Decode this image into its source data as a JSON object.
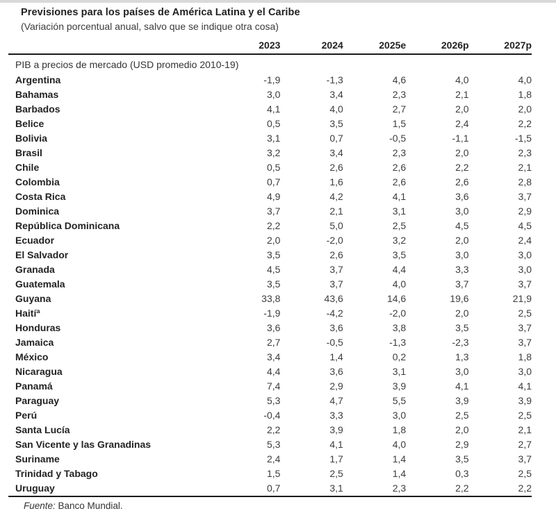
{
  "header": {
    "title": "Previsiones para los países de América Latina y el Caribe",
    "subtitle": "(Variación porcentual anual, salvo que se indique otra cosa)"
  },
  "table": {
    "columns": [
      "2023",
      "2024",
      "2025e",
      "2026p",
      "2027p"
    ],
    "section": "PIB a precios de mercado (USD promedio 2010-19)",
    "rows": [
      {
        "country": "Argentina",
        "values": [
          "-1,9",
          "-1,3",
          "4,6",
          "4,0",
          "4,0"
        ]
      },
      {
        "country": "Bahamas",
        "values": [
          "3,0",
          "3,4",
          "2,3",
          "2,1",
          "1,8"
        ]
      },
      {
        "country": "Barbados",
        "values": [
          "4,1",
          "4,0",
          "2,7",
          "2,0",
          "2,0"
        ]
      },
      {
        "country": "Belice",
        "values": [
          "0,5",
          "3,5",
          "1,5",
          "2,4",
          "2,2"
        ]
      },
      {
        "country": "Bolivia",
        "values": [
          "3,1",
          "0,7",
          "-0,5",
          "-1,1",
          "-1,5"
        ]
      },
      {
        "country": "Brasil",
        "values": [
          "3,2",
          "3,4",
          "2,3",
          "2,0",
          "2,3"
        ]
      },
      {
        "country": "Chile",
        "values": [
          "0,5",
          "2,6",
          "2,6",
          "2,2",
          "2,1"
        ]
      },
      {
        "country": "Colombia",
        "values": [
          "0,7",
          "1,6",
          "2,6",
          "2,6",
          "2,8"
        ]
      },
      {
        "country": "Costa Rica",
        "values": [
          "4,9",
          "4,2",
          "4,1",
          "3,6",
          "3,7"
        ]
      },
      {
        "country": "Dominica",
        "values": [
          "3,7",
          "2,1",
          "3,1",
          "3,0",
          "2,9"
        ]
      },
      {
        "country": "República Dominicana",
        "values": [
          "2,2",
          "5,0",
          "2,5",
          "4,5",
          "4,5"
        ]
      },
      {
        "country": "Ecuador",
        "values": [
          "2,0",
          "-2,0",
          "3,2",
          "2,0",
          "2,4"
        ]
      },
      {
        "country": "El Salvador",
        "values": [
          "3,5",
          "2,6",
          "3,5",
          "3,0",
          "3,0"
        ]
      },
      {
        "country": "Granada",
        "values": [
          "4,5",
          "3,7",
          "4,4",
          "3,3",
          "3,0"
        ]
      },
      {
        "country": "Guatemala",
        "values": [
          "3,5",
          "3,7",
          "4,0",
          "3,7",
          "3,7"
        ]
      },
      {
        "country": "Guyana",
        "values": [
          "33,8",
          "43,6",
          "14,6",
          "19,6",
          "21,9"
        ]
      },
      {
        "country": "Haitíª",
        "values": [
          "-1,9",
          "-4,2",
          "-2,0",
          "2,0",
          "2,5"
        ]
      },
      {
        "country": "Honduras",
        "values": [
          "3,6",
          "3,6",
          "3,8",
          "3,5",
          "3,7"
        ]
      },
      {
        "country": "Jamaica",
        "values": [
          "2,7",
          "-0,5",
          "-1,3",
          "-2,3",
          "3,7"
        ]
      },
      {
        "country": "México",
        "values": [
          "3,4",
          "1,4",
          "0,2",
          "1,3",
          "1,8"
        ]
      },
      {
        "country": "Nicaragua",
        "values": [
          "4,4",
          "3,6",
          "3,1",
          "3,0",
          "3,0"
        ]
      },
      {
        "country": "Panamá",
        "values": [
          "7,4",
          "2,9",
          "3,9",
          "4,1",
          "4,1"
        ]
      },
      {
        "country": "Paraguay",
        "values": [
          "5,3",
          "4,7",
          "5,5",
          "3,9",
          "3,9"
        ]
      },
      {
        "country": "Perú",
        "values": [
          "-0,4",
          "3,3",
          "3,0",
          "2,5",
          "2,5"
        ]
      },
      {
        "country": "Santa Lucía",
        "values": [
          "2,2",
          "3,9",
          "1,8",
          "2,0",
          "2,1"
        ]
      },
      {
        "country": "San Vicente y las Granadinas",
        "values": [
          "5,3",
          "4,1",
          "4,0",
          "2,9",
          "2,7"
        ]
      },
      {
        "country": "Suriname",
        "values": [
          "2,4",
          "1,7",
          "1,4",
          "3,5",
          "3,7"
        ]
      },
      {
        "country": "Trinidad y Tabago",
        "values": [
          "1,5",
          "2,5",
          "1,4",
          "0,3",
          "2,5"
        ]
      },
      {
        "country": "Uruguay",
        "values": [
          "0,7",
          "3,1",
          "2,3",
          "2,2",
          "2,2"
        ]
      }
    ]
  },
  "footer": {
    "source_label": "Fuente:",
    "source_text": " Banco Mundial."
  }
}
